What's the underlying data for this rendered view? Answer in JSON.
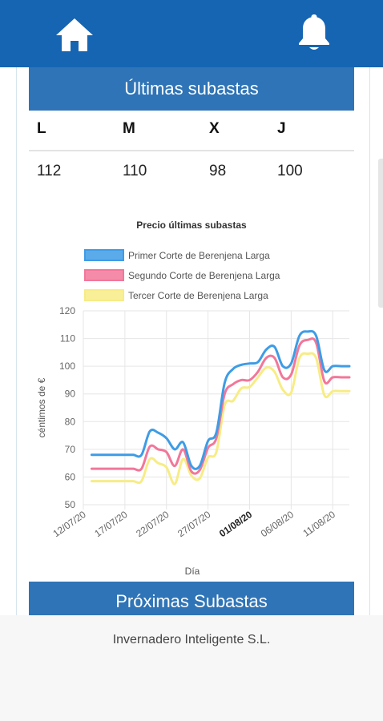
{
  "header": {
    "home_icon": "home-icon",
    "bell_icon": "bell-icon",
    "bar_color": "#1565b3"
  },
  "last_auctions": {
    "title": "Últimas subastas",
    "columns": [
      "L",
      "M",
      "X",
      "J"
    ],
    "values": [
      "112",
      "110",
      "98",
      "100"
    ]
  },
  "chart_data": {
    "type": "line",
    "title": "Precio últimas subastas",
    "xlabel": "Día",
    "ylabel": "céntimos de €",
    "ylim": [
      50,
      120
    ],
    "yticks": [
      "120",
      "110",
      "100",
      "90",
      "80",
      "70",
      "60",
      "50"
    ],
    "xticks": [
      "12/07/20",
      "17/07/20",
      "22/07/20",
      "27/07/20",
      "01/08/20",
      "06/08/20",
      "11/08/20"
    ],
    "xticks_bold": "01/08/20",
    "x_start": "12/07/20",
    "x_end": "13/08/20",
    "grid": true,
    "legend_position": "top",
    "x": [
      "13/07/20",
      "14/07/20",
      "15/07/20",
      "16/07/20",
      "17/07/20",
      "18/07/20",
      "19/07/20",
      "20/07/20",
      "21/07/20",
      "22/07/20",
      "23/07/20",
      "24/07/20",
      "25/07/20",
      "26/07/20",
      "27/07/20",
      "28/07/20",
      "29/07/20",
      "30/07/20",
      "31/07/20",
      "01/08/20",
      "02/08/20",
      "03/08/20",
      "04/08/20",
      "05/08/20",
      "06/08/20",
      "07/08/20",
      "08/08/20",
      "09/08/20",
      "10/08/20",
      "11/08/20",
      "12/08/20",
      "13/08/20"
    ],
    "series": [
      {
        "name": "Primer Corte de Berenjena Larga",
        "color": "#3e9ce6",
        "values": [
          68,
          68,
          68,
          68,
          68,
          68,
          68,
          76.5,
          76,
          74,
          70,
          72.5,
          64,
          64,
          73,
          76,
          94,
          99,
          100.5,
          101,
          101.5,
          106,
          107,
          100,
          101,
          111,
          112.5,
          111,
          98.5,
          100,
          100,
          100
        ]
      },
      {
        "name": "Segundo Corte de Berenjena Larga",
        "color": "#f2779a",
        "values": [
          63,
          63,
          63,
          63,
          63,
          63,
          63,
          71,
          70,
          69,
          64,
          70,
          62,
          62.5,
          70.5,
          74,
          90,
          93.5,
          95,
          95,
          98,
          103,
          103,
          96,
          97,
          107.5,
          109.5,
          108.5,
          94.5,
          96,
          96,
          96
        ]
      },
      {
        "name": "Tercer Corte de Berenjena Larga",
        "color": "#f7ec86",
        "values": [
          58.5,
          58.5,
          58.5,
          58.5,
          58.5,
          58.5,
          58.5,
          66.5,
          65,
          63.5,
          57.5,
          66.5,
          60.5,
          59.5,
          67,
          69,
          86,
          87.5,
          92,
          92.5,
          96,
          99.5,
          98,
          91.5,
          90.5,
          103,
          104.5,
          103,
          89.5,
          91,
          91,
          91
        ]
      }
    ]
  },
  "next_auctions": {
    "title": "Próximas Subastas"
  },
  "footer": {
    "company": "Invernadero Inteligente S.L."
  }
}
